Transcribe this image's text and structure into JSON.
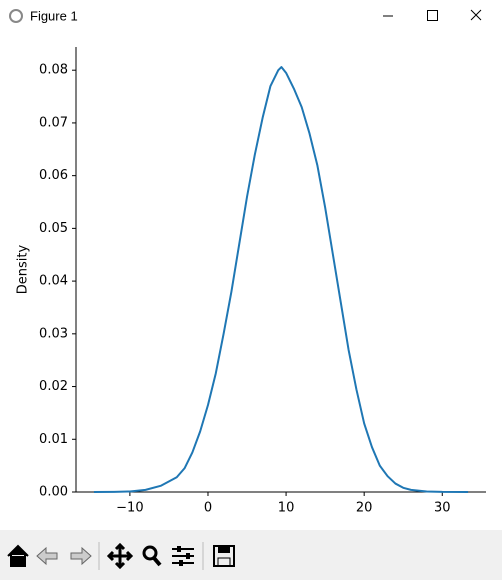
{
  "window_title": "Figure 1",
  "chart_data": {
    "type": "line",
    "ylabel": "Density",
    "x": [
      -14.6,
      -12,
      -10,
      -8,
      -6,
      -4,
      -3,
      -2,
      -1,
      0,
      1,
      2,
      3,
      4,
      5,
      6,
      7,
      8,
      9,
      9.4,
      10,
      11,
      12,
      13,
      14,
      15,
      16,
      17,
      18,
      19,
      20,
      21,
      22,
      23,
      24,
      25,
      26,
      28,
      30,
      33.3
    ],
    "series": [
      {
        "color": "#1f77b4",
        "values": [
          0,
          2e-05,
          0.0001,
          0.0004,
          0.0012,
          0.0028,
          0.0045,
          0.0075,
          0.0115,
          0.0165,
          0.0225,
          0.03,
          0.038,
          0.047,
          0.056,
          0.064,
          0.071,
          0.077,
          0.08,
          0.0806,
          0.0795,
          0.0765,
          0.073,
          0.068,
          0.062,
          0.054,
          0.045,
          0.036,
          0.027,
          0.0195,
          0.013,
          0.0085,
          0.005,
          0.003,
          0.0016,
          0.0008,
          0.0004,
          0.0001,
          2e-05,
          0
        ]
      }
    ],
    "xlim": [
      -16.9,
      35.6
    ],
    "ylim": [
      0,
      0.0844
    ],
    "xticks": [
      {
        "value": -10,
        "label": "−10"
      },
      0,
      10,
      20,
      30
    ],
    "yticks": [
      {
        "value": 0,
        "label": "0.00"
      },
      {
        "value": 0.01,
        "label": "0.01"
      },
      {
        "value": 0.02,
        "label": "0.02"
      },
      {
        "value": 0.03,
        "label": "0.03"
      },
      {
        "value": 0.04,
        "label": "0.04"
      },
      {
        "value": 0.05,
        "label": "0.05"
      },
      {
        "value": 0.06,
        "label": "0.06"
      },
      {
        "value": 0.07,
        "label": "0.07"
      },
      {
        "value": 0.08,
        "label": "0.08"
      }
    ],
    "grid": false
  }
}
